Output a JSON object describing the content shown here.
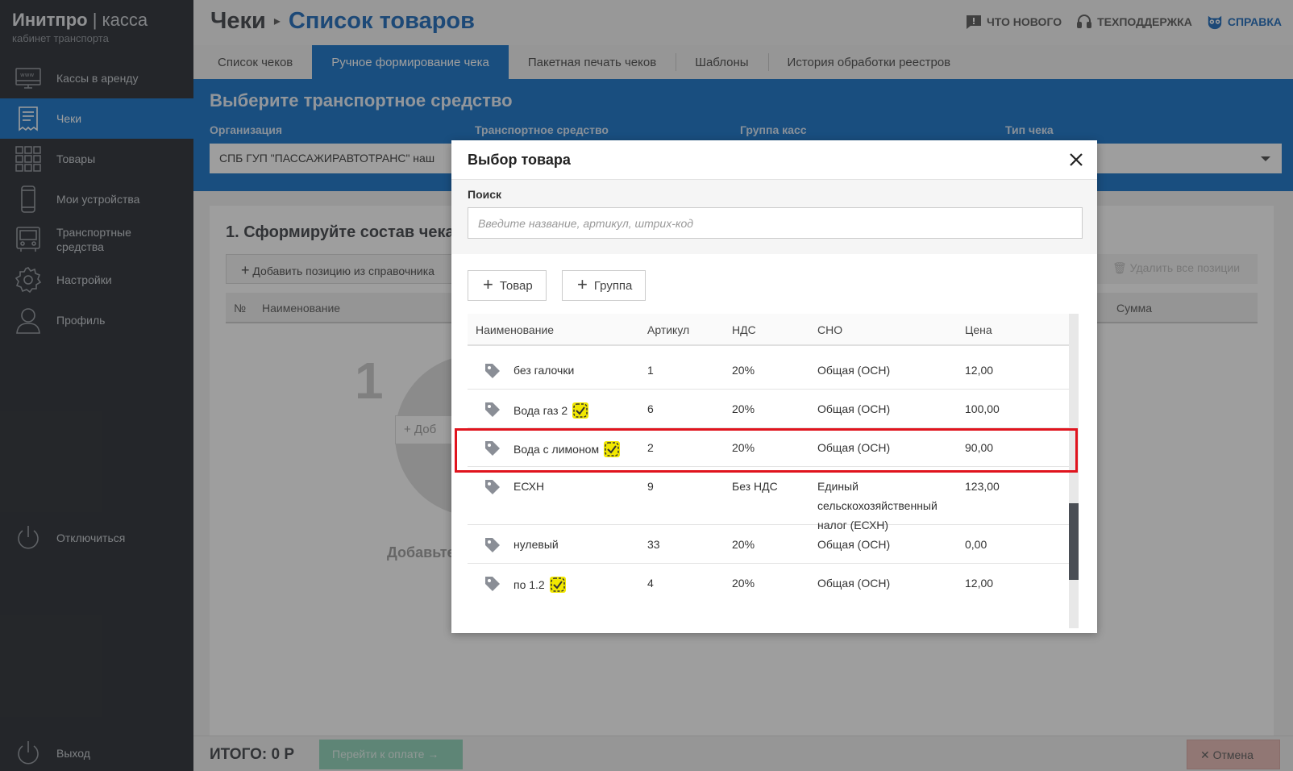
{
  "app": {
    "brand": "Инитпро",
    "brand_sep": "|",
    "brand_product": "касса",
    "subtitle": "кабинет транспорта"
  },
  "sidebar": {
    "items": [
      {
        "label": "Кассы в аренду",
        "icon": "www-monitor-icon"
      },
      {
        "label": "Чеки",
        "icon": "receipt-icon",
        "active": true
      },
      {
        "label": "Товары",
        "icon": "grid-icon"
      },
      {
        "label": "Мои устройства",
        "icon": "phone-icon"
      },
      {
        "label": "Транспортные средства",
        "icon": "bus-icon"
      },
      {
        "label": "Настройки",
        "icon": "gear-icon"
      },
      {
        "label": "Профиль",
        "icon": "user-icon"
      }
    ],
    "disconnect": "Отключиться",
    "exit": "Выход"
  },
  "header": {
    "crumb_parent": "Чеки",
    "crumb_current": "Список товаров",
    "links": {
      "whats_new": "ЧТО НОВОГО",
      "support": "ТЕХПОДДЕРЖКА",
      "help": "СПРАВКА"
    }
  },
  "tabs": [
    {
      "label": "Список чеков"
    },
    {
      "label": "Ручное формирование чека",
      "active": true
    },
    {
      "label": "Пакетная печать чеков"
    },
    {
      "label": "Шаблоны"
    },
    {
      "label": "История обработки реестров"
    }
  ],
  "vehicle_panel": {
    "title": "Выберите транспортное средство",
    "labels": {
      "org": "Организация",
      "vehicle": "Транспортное средство",
      "group": "Группа касс",
      "type": "Тип чека"
    },
    "org_value": "СПБ ГУП \"ПАССАЖИРАВТОТРАНС\" наш"
  },
  "main": {
    "step_title": "1. Сформируйте состав чека",
    "add_from_catalog": "Добавить позицию из справочника",
    "delete_all": "Удалить все позиции",
    "columns": {
      "num": "№",
      "name": "Наименование",
      "sum": "Сумма"
    },
    "empty_num": "1",
    "empty_btn": "+ Доб",
    "empty_text": "Добавьте"
  },
  "footer": {
    "total": "ИТОГО: 0 Р",
    "pay": "Перейти к оплате",
    "cancel": "Отмена"
  },
  "colors": {
    "accent": "#0d6ec7",
    "sidebar": "#22262c",
    "highlight": "#e0141e"
  },
  "modal": {
    "title": "Выбор товара",
    "search_label": "Поиск",
    "search_placeholder": "Введите название, артикул, штрих-код",
    "btn_product": "Товар",
    "btn_group": "Группа",
    "columns": {
      "name": "Наименование",
      "article": "Артикул",
      "vat": "НДС",
      "sno": "СНО",
      "price": "Цена"
    },
    "rows": [
      {
        "name": "без галочки",
        "badge": false,
        "article": "1",
        "vat": "20%",
        "sno": "Общая (ОСН)",
        "price": "12,00"
      },
      {
        "name": "Вода газ 2",
        "badge": true,
        "article": "6",
        "vat": "20%",
        "sno": "Общая (ОСН)",
        "price": "100,00"
      },
      {
        "name": "Вода с лимоном",
        "badge": true,
        "article": "2",
        "vat": "20%",
        "sno": "Общая (ОСН)",
        "price": "90,00"
      },
      {
        "name": "ЕСХН",
        "badge": false,
        "article": "9",
        "vat": "Без НДС",
        "sno": "Единый сельскохозяйственный налог (ЕСХН)",
        "price": "123,00"
      },
      {
        "name": "нулевый",
        "badge": false,
        "article": "33",
        "vat": "20%",
        "sno": "Общая (ОСН)",
        "price": "0,00"
      },
      {
        "name": "по 1.2",
        "badge": true,
        "article": "4",
        "vat": "20%",
        "sno": "Общая (ОСН)",
        "price": "12,00"
      }
    ]
  }
}
